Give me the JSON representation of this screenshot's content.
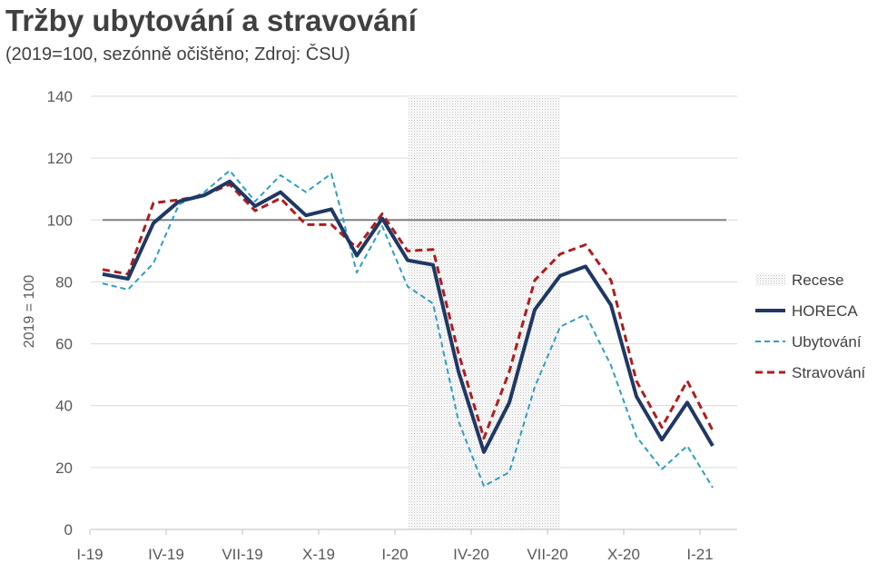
{
  "chart_data": {
    "type": "line",
    "title": "Tržby ubytování a stravování",
    "subtitle": "(2019=100, sezónně očištěno; Zdroj: ČSU)",
    "ylabel": "2019 = 100",
    "xlabel": "",
    "ylim": [
      0,
      140
    ],
    "yticks": [
      0,
      20,
      40,
      60,
      80,
      100,
      120,
      140
    ],
    "x": [
      "I-19",
      "II-19",
      "III-19",
      "IV-19",
      "V-19",
      "VI-19",
      "VII-19",
      "VIII-19",
      "IX-19",
      "X-19",
      "XI-19",
      "XII-19",
      "I-20",
      "II-20",
      "III-20",
      "IV-20",
      "V-20",
      "VI-20",
      "VII-20",
      "VIII-20",
      "IX-20",
      "X-20",
      "XI-20",
      "XII-20",
      "I-21"
    ],
    "xtick_labels": [
      "I-19",
      "IV-19",
      "VII-19",
      "X-19",
      "I-20",
      "IV-20",
      "VII-20",
      "X-20",
      "I-21"
    ],
    "xtick_positions": [
      0,
      3,
      6,
      9,
      12,
      15,
      18,
      21,
      24
    ],
    "reference_line": 100,
    "recession": {
      "label": "Recese",
      "start": 12,
      "end": 18
    },
    "series": [
      {
        "name": "HORECA",
        "color": "#1f3864",
        "style": "solid",
        "values": [
          82.5,
          81,
          99,
          106,
          108,
          112.5,
          104.5,
          109,
          101.5,
          103.5,
          88.5,
          100.5,
          87,
          85.5,
          51,
          25,
          41,
          71,
          82,
          85,
          72.5,
          43,
          29,
          41,
          27
        ]
      },
      {
        "name": "Ubytování",
        "color": "#2e9ec4",
        "style": "dash",
        "values": [
          79.5,
          77.5,
          86,
          105,
          109,
          116,
          106,
          114.5,
          109,
          115,
          83,
          98,
          78.5,
          73,
          35,
          14,
          18.5,
          46,
          65.5,
          69.5,
          53,
          30,
          19.5,
          27,
          13.5
        ]
      },
      {
        "name": "Stravování",
        "color": "#b01c1c",
        "style": "dash",
        "values": [
          84,
          82.5,
          105.5,
          106.5,
          108,
          111.5,
          103,
          107,
          98.5,
          98.5,
          91,
          102,
          90,
          90.5,
          57,
          29.5,
          51,
          80.5,
          89,
          92,
          80.5,
          48,
          33,
          48,
          32
        ]
      }
    ],
    "legend": {
      "position": "right"
    }
  }
}
